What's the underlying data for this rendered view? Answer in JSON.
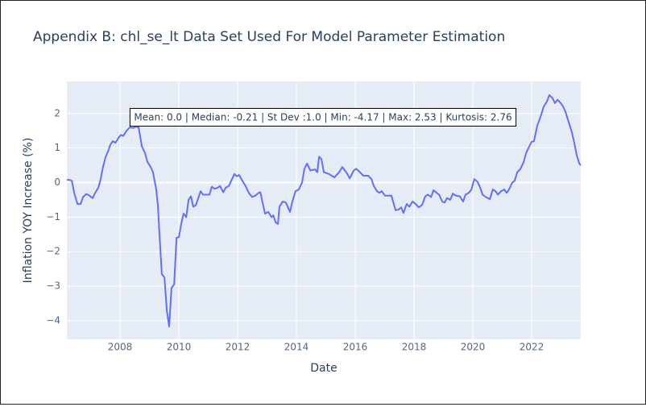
{
  "chart_data": {
    "type": "line",
    "title": "Appendix B: chl_se_lt Data Set Used For Model Parameter Estimation",
    "x_label": "Date",
    "y_label": "Inflation YOY Increase (%)",
    "annotation": "Mean: 0.0 | Median: -0.21 | St Dev :1.0 | Min: -4.17 | Max: 2.53 | Kurtosis: 2.76",
    "grid": true,
    "xlim": [
      2006.19,
      2023.67
    ],
    "ylim": [
      -4.54,
      2.93
    ],
    "xticks": [
      2008,
      2010,
      2012,
      2014,
      2016,
      2018,
      2020,
      2022
    ],
    "yticks": [
      {
        "value": -4,
        "label": "−4"
      },
      {
        "value": -3,
        "label": "−3"
      },
      {
        "value": -2,
        "label": "−2"
      },
      {
        "value": -1,
        "label": "−1"
      },
      0,
      1,
      2
    ],
    "x": [
      2006.19,
      2006.27,
      2006.36,
      2006.44,
      2006.55,
      2006.66,
      2006.74,
      2006.85,
      2006.96,
      2007.07,
      2007.15,
      2007.26,
      2007.34,
      2007.42,
      2007.51,
      2007.59,
      2007.67,
      2007.75,
      2007.84,
      2007.95,
      2008.03,
      2008.11,
      2008.22,
      2008.33,
      2008.44,
      2008.52,
      2008.63,
      2008.74,
      2008.85,
      2008.93,
      2009.04,
      2009.12,
      2009.23,
      2009.29,
      2009.34,
      2009.42,
      2009.51,
      2009.59,
      2009.67,
      2009.75,
      2009.84,
      2009.92,
      2010.0,
      2010.08,
      2010.16,
      2010.25,
      2010.33,
      2010.41,
      2010.49,
      2010.58,
      2010.66,
      2010.74,
      2010.82,
      2010.93,
      2011.04,
      2011.12,
      2011.21,
      2011.32,
      2011.4,
      2011.51,
      2011.59,
      2011.7,
      2011.78,
      2011.89,
      2011.97,
      2012.05,
      2012.16,
      2012.27,
      2012.38,
      2012.49,
      2012.6,
      2012.71,
      2012.77,
      2012.93,
      2013.04,
      2013.15,
      2013.21,
      2013.29,
      2013.37,
      2013.42,
      2013.53,
      2013.64,
      2013.78,
      2013.86,
      2013.97,
      2014.08,
      2014.19,
      2014.27,
      2014.36,
      2014.47,
      2014.63,
      2014.71,
      2014.77,
      2014.85,
      2014.93,
      2015.1,
      2015.29,
      2015.45,
      2015.56,
      2015.73,
      2015.81,
      2015.95,
      2016.03,
      2016.16,
      2016.27,
      2016.44,
      2016.55,
      2016.63,
      2016.74,
      2016.82,
      2016.9,
      2017.01,
      2017.23,
      2017.37,
      2017.48,
      2017.56,
      2017.64,
      2017.75,
      2017.84,
      2017.95,
      2018.05,
      2018.16,
      2018.27,
      2018.38,
      2018.47,
      2018.58,
      2018.66,
      2018.77,
      2018.85,
      2018.96,
      2019.04,
      2019.12,
      2019.23,
      2019.32,
      2019.42,
      2019.56,
      2019.67,
      2019.75,
      2019.86,
      2019.95,
      2020.05,
      2020.16,
      2020.25,
      2020.33,
      2020.44,
      2020.58,
      2020.68,
      2020.77,
      2020.85,
      2020.96,
      2021.07,
      2021.15,
      2021.23,
      2021.34,
      2021.42,
      2021.51,
      2021.62,
      2021.73,
      2021.81,
      2021.92,
      2022.0,
      2022.08,
      2022.19,
      2022.3,
      2022.41,
      2022.52,
      2022.6,
      2022.71,
      2022.79,
      2022.88,
      2022.99,
      2023.07,
      2023.15,
      2023.26,
      2023.37,
      2023.45,
      2023.53,
      2023.62,
      2023.67
    ],
    "series": [
      {
        "color": "#636efa",
        "values": [
          0.08,
          0.08,
          0.05,
          -0.3,
          -0.62,
          -0.62,
          -0.42,
          -0.33,
          -0.38,
          -0.45,
          -0.3,
          -0.15,
          0.1,
          0.45,
          0.75,
          0.9,
          1.1,
          1.2,
          1.15,
          1.3,
          1.38,
          1.35,
          1.5,
          1.6,
          1.58,
          1.62,
          1.6,
          1.05,
          0.85,
          0.6,
          0.45,
          0.3,
          -0.2,
          -0.7,
          -1.5,
          -2.65,
          -2.75,
          -3.7,
          -4.17,
          -3.05,
          -2.95,
          -1.6,
          -1.58,
          -1.2,
          -0.9,
          -1.0,
          -0.5,
          -0.4,
          -0.7,
          -0.65,
          -0.45,
          -0.25,
          -0.35,
          -0.35,
          -0.35,
          -0.12,
          -0.18,
          -0.15,
          -0.1,
          -0.28,
          -0.15,
          -0.1,
          0.05,
          0.25,
          0.18,
          0.22,
          0.05,
          -0.1,
          -0.3,
          -0.42,
          -0.38,
          -0.3,
          -0.28,
          -0.9,
          -0.85,
          -1.0,
          -0.95,
          -1.15,
          -1.2,
          -0.7,
          -0.55,
          -0.58,
          -0.85,
          -0.55,
          -0.25,
          -0.2,
          0.0,
          0.4,
          0.55,
          0.35,
          0.38,
          0.3,
          0.75,
          0.68,
          0.3,
          0.25,
          0.15,
          0.3,
          0.45,
          0.25,
          0.12,
          0.35,
          0.4,
          0.3,
          0.2,
          0.2,
          0.1,
          -0.1,
          -0.25,
          -0.3,
          -0.25,
          -0.38,
          -0.38,
          -0.8,
          -0.78,
          -0.72,
          -0.88,
          -0.62,
          -0.7,
          -0.55,
          -0.62,
          -0.72,
          -0.65,
          -0.4,
          -0.35,
          -0.42,
          -0.22,
          -0.3,
          -0.35,
          -0.55,
          -0.58,
          -0.45,
          -0.5,
          -0.32,
          -0.38,
          -0.4,
          -0.55,
          -0.35,
          -0.3,
          -0.2,
          0.1,
          0.02,
          -0.15,
          -0.35,
          -0.42,
          -0.48,
          -0.2,
          -0.25,
          -0.35,
          -0.25,
          -0.2,
          -0.3,
          -0.2,
          0.0,
          0.05,
          0.3,
          0.4,
          0.6,
          0.85,
          1.05,
          1.18,
          1.2,
          1.65,
          1.9,
          2.2,
          2.35,
          2.53,
          2.45,
          2.3,
          2.4,
          2.3,
          2.2,
          2.05,
          1.75,
          1.45,
          1.15,
          0.8,
          0.55,
          0.5
        ]
      }
    ]
  }
}
